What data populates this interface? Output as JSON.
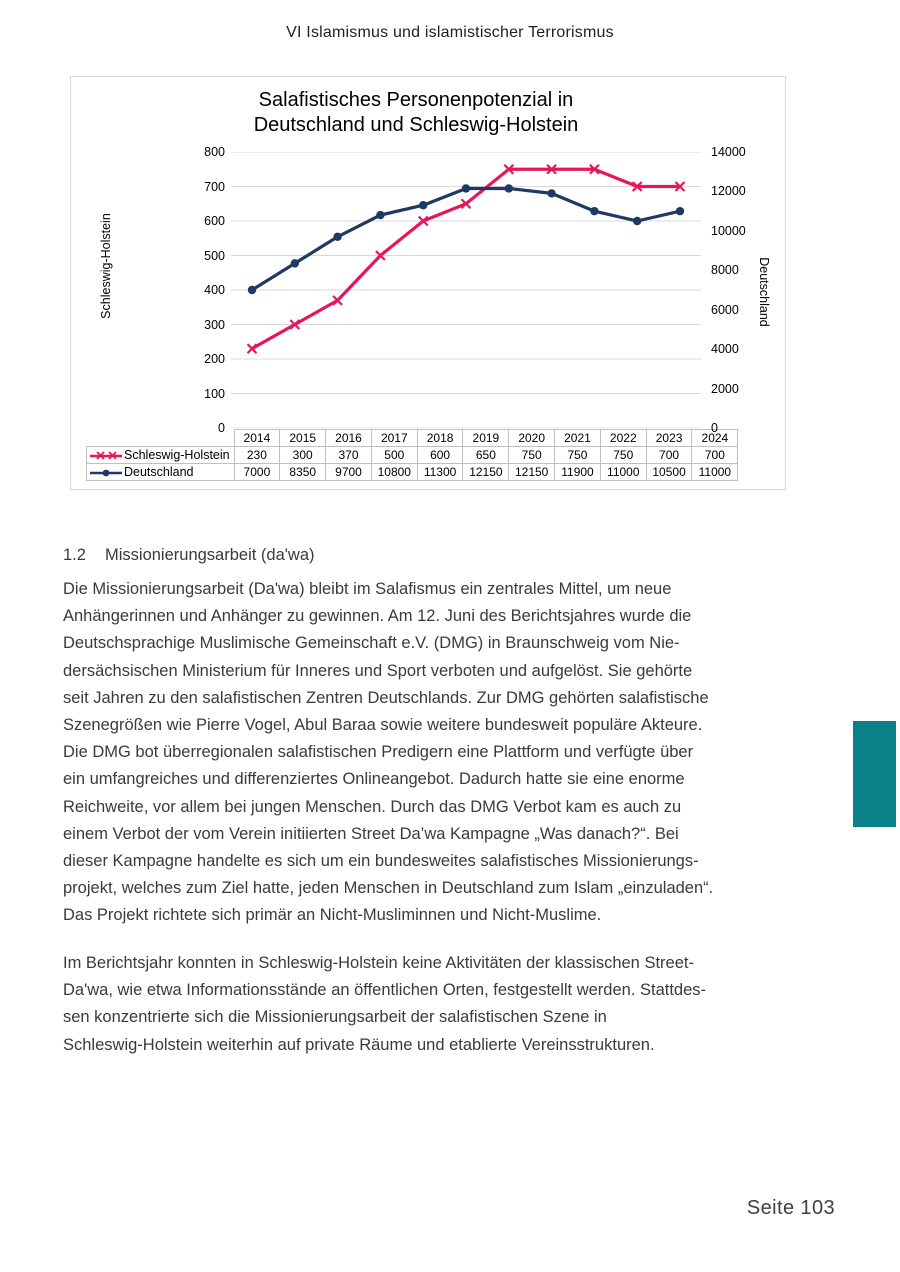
{
  "page": {
    "header": "VI Islamismus und islamistischer Terrorismus",
    "footer": "Seite 103"
  },
  "chart_data": {
    "type": "line",
    "title": "Salafistisches Personenpotenzial in\nDeutschland und Schleswig-Holstein",
    "categories": [
      "2014",
      "2015",
      "2016",
      "2017",
      "2018",
      "2019",
      "2020",
      "2021",
      "2022",
      "2023",
      "2024"
    ],
    "series": [
      {
        "name": "Schleswig-Holstein",
        "values": [
          230,
          300,
          370,
          500,
          600,
          650,
          750,
          750,
          750,
          700,
          700
        ],
        "color": "#e4175c",
        "marker": "x",
        "axis": "left"
      },
      {
        "name": "Deutschland",
        "values": [
          7000,
          8350,
          9700,
          10800,
          11300,
          12150,
          12150,
          11900,
          11000,
          10500,
          11000
        ],
        "color": "#1f3864",
        "marker": "circle",
        "axis": "right"
      }
    ],
    "left_axis": {
      "label": "Schleswig-Holstein",
      "min": 0,
      "max": 800,
      "step": 100
    },
    "right_axis": {
      "label": "Deutschland",
      "min": 0,
      "max": 14000,
      "step": 2000
    },
    "grid": "horizontal",
    "gridline_color": "#d9d9d9",
    "legend_position": "table-left"
  },
  "section": {
    "number": "1.2",
    "title": "Missionierungsarbeit (da'wa)"
  },
  "paragraphs": {
    "p1": "Die Missionierungsarbeit (Da'wa) bleibt im Salafismus ein zentrales Mittel, um neue\nAnhängerinnen und Anhänger zu gewinnen. Am 12. Juni des Berichtsjahres wurde die\nDeutschsprachige Muslimische Gemeinschaft e.V. (DMG) in Braunschweig vom Nie-\ndersächsischen Ministerium für Inneres und Sport verboten und aufgelöst. Sie gehörte\nseit Jahren zu den salafistischen Zentren Deutschlands. Zur DMG gehörten salafistische\nSzenegrößen wie Pierre Vogel, Abul Baraa sowie weitere bundesweit populäre Akteure.\nDie DMG bot überregionalen salafistischen Predigern eine Plattform und verfügte über\nein umfangreiches und differenziertes Onlineangebot. Dadurch hatte sie eine enorme\nReichweite, vor allem bei jungen Menschen. Durch das DMG Verbot kam es auch zu\neinem Verbot der vom Verein initiierten Street Da’wa Kampagne „Was danach?“. Bei\ndieser Kampagne handelte es sich um ein bundesweites salafistisches Missionierungs-\nprojekt, welches zum Ziel hatte, jeden Menschen in Deutschland zum Islam „einzuladen“.\nDas Projekt richtete sich primär an Nicht-Musliminnen und Nicht-Muslime.",
    "p2": "Im Berichtsjahr konnten in Schleswig-Holstein keine Aktivitäten der klassischen Street-\nDa'wa, wie etwa Informationsstände an öffentlichen Orten, festgestellt werden. Stattdes-\nsen konzentrierte sich die Missionierungsarbeit der salafistischen Szene in\nSchleswig-Holstein weiterhin auf private Räume und etablierte Vereinsstrukturen."
  },
  "accent": {
    "teal": "#0a8186"
  }
}
